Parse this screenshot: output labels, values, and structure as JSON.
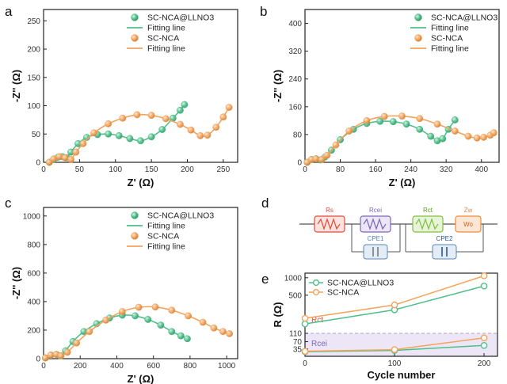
{
  "colors": {
    "llno3": "#4fbf8a",
    "nca": "#f5a35c",
    "axis": "#222222",
    "rs": "#e04a3a",
    "rcei": "#7a67b8",
    "rct": "#7fbf3f",
    "zw": "#f08a3c",
    "cpe": "#5a86b6",
    "rcei_band": "#ece6f6",
    "dash": "#b0a0c8"
  },
  "panels": {
    "a": {
      "letter": "a"
    },
    "b": {
      "letter": "b"
    },
    "c": {
      "letter": "c"
    },
    "d": {
      "letter": "d"
    },
    "e": {
      "letter": "e"
    }
  },
  "legend": {
    "llno3": "SC-NCA@LLNO3",
    "fit": "Fitting line",
    "nca": "SC-NCA"
  },
  "circuit": {
    "rs": "Rs",
    "rcei": "Rcei",
    "rct": "Rct",
    "zw": "Zw",
    "wo": "Wo",
    "cpe1": "CPE1",
    "cpe2": "CPE2",
    "icons": [
      "resistor-icon",
      "warburg-icon",
      "capacitor-icon"
    ]
  },
  "chart_data": [
    {
      "id": "a",
      "type": "scatter",
      "xlabel": "Z' (Ω)",
      "ylabel": "-Z'' (Ω)",
      "xlim": [
        0,
        270
      ],
      "ylim": [
        0,
        270
      ],
      "xticks": [
        0,
        50,
        100,
        150,
        200,
        250
      ],
      "yticks": [
        0,
        50,
        100,
        150,
        200,
        250
      ],
      "series": [
        {
          "name": "SC-NCA@LLNO3",
          "fit_name": "Fitting line",
          "color_key": "llno3",
          "x": [
            8,
            14,
            20,
            26,
            32,
            38,
            48,
            60,
            75,
            90,
            105,
            120,
            135,
            150,
            165,
            180,
            190,
            196
          ],
          "y": [
            0,
            5,
            9,
            10,
            8,
            18,
            33,
            44,
            49,
            50,
            47,
            42,
            38,
            45,
            58,
            78,
            92,
            102
          ]
        },
        {
          "name": "SC-NCA",
          "fit_name": "Fitting line",
          "color_key": "nca",
          "x": [
            8,
            14,
            22,
            30,
            38,
            45,
            55,
            70,
            90,
            110,
            130,
            150,
            170,
            190,
            205,
            218,
            228,
            240,
            250,
            258
          ],
          "y": [
            0,
            6,
            10,
            8,
            5,
            18,
            33,
            52,
            68,
            78,
            84,
            83,
            77,
            67,
            57,
            47,
            48,
            62,
            80,
            97
          ]
        }
      ]
    },
    {
      "id": "b",
      "type": "scatter",
      "xlabel": "Z' (Ω)",
      "ylabel": "-Z'' (Ω)",
      "xlim": [
        0,
        440
      ],
      "ylim": [
        0,
        440
      ],
      "xticks": [
        0,
        80,
        160,
        240,
        320,
        400
      ],
      "yticks": [
        0,
        80,
        160,
        240,
        320,
        400
      ],
      "series": [
        {
          "name": "SC-NCA@LLNO3",
          "fit_name": "Fitting line",
          "color_key": "llno3",
          "x": [
            5,
            15,
            25,
            35,
            45,
            60,
            80,
            110,
            140,
            170,
            200,
            230,
            260,
            285,
            300,
            312,
            325,
            340
          ],
          "y": [
            0,
            8,
            10,
            7,
            15,
            35,
            65,
            95,
            112,
            118,
            117,
            110,
            95,
            75,
            62,
            68,
            95,
            122
          ]
        },
        {
          "name": "SC-NCA",
          "fit_name": "Fitting line",
          "color_key": "nca",
          "x": [
            5,
            15,
            25,
            38,
            50,
            70,
            100,
            140,
            180,
            220,
            260,
            300,
            340,
            370,
            390,
            405,
            420,
            428
          ],
          "y": [
            0,
            8,
            10,
            8,
            20,
            50,
            90,
            120,
            132,
            133,
            126,
            110,
            90,
            75,
            70,
            72,
            78,
            85
          ]
        }
      ]
    },
    {
      "id": "c",
      "type": "scatter",
      "xlabel": "Z' (Ω)",
      "ylabel": "-Z'' (Ω)",
      "xlim": [
        0,
        1060
      ],
      "ylim": [
        0,
        1060
      ],
      "xticks": [
        0,
        200,
        400,
        600,
        800,
        1000
      ],
      "yticks": [
        0,
        200,
        400,
        600,
        800,
        1000
      ],
      "series": [
        {
          "name": "SC-NCA@LLNO3",
          "fit_name": "Fitting line",
          "color_key": "llno3",
          "x": [
            10,
            40,
            70,
            90,
            120,
            160,
            220,
            290,
            360,
            430,
            500,
            570,
            640,
            700,
            750,
            785
          ],
          "y": [
            5,
            25,
            30,
            20,
            55,
            120,
            190,
            245,
            285,
            305,
            300,
            275,
            235,
            190,
            160,
            140
          ]
        },
        {
          "name": "SC-NCA",
          "fit_name": "Fitting line",
          "color_key": "nca",
          "x": [
            10,
            40,
            70,
            95,
            130,
            180,
            250,
            340,
            430,
            520,
            610,
            700,
            790,
            870,
            930,
            980,
            1015
          ],
          "y": [
            5,
            25,
            30,
            20,
            45,
            110,
            190,
            270,
            330,
            360,
            362,
            340,
            300,
            255,
            215,
            190,
            175
          ]
        }
      ]
    },
    {
      "id": "e",
      "type": "line",
      "xlabel": "Cycle number",
      "ylabel": "R (Ω)",
      "xlim": [
        0,
        215
      ],
      "xticks": [
        0,
        100,
        200
      ],
      "yticks": [
        35,
        70,
        110,
        500,
        1000
      ],
      "break_value": 110,
      "regions": [
        {
          "label": "Rct",
          "color_key": "rct_label"
        },
        {
          "label": "Rcei",
          "color_key": "rcei"
        }
      ],
      "series": [
        {
          "name": "SC-NCA@LLNO3",
          "color_key": "llno3",
          "x": [
            0,
            100,
            200
          ],
          "rct": [
            160,
            280,
            720
          ],
          "rcei": [
            22,
            28,
            52
          ]
        },
        {
          "name": "SC-NCA",
          "color_key": "nca",
          "x": [
            0,
            100,
            200
          ],
          "rct": [
            200,
            340,
            1080
          ],
          "rcei": [
            24,
            32,
            88
          ]
        }
      ]
    }
  ]
}
